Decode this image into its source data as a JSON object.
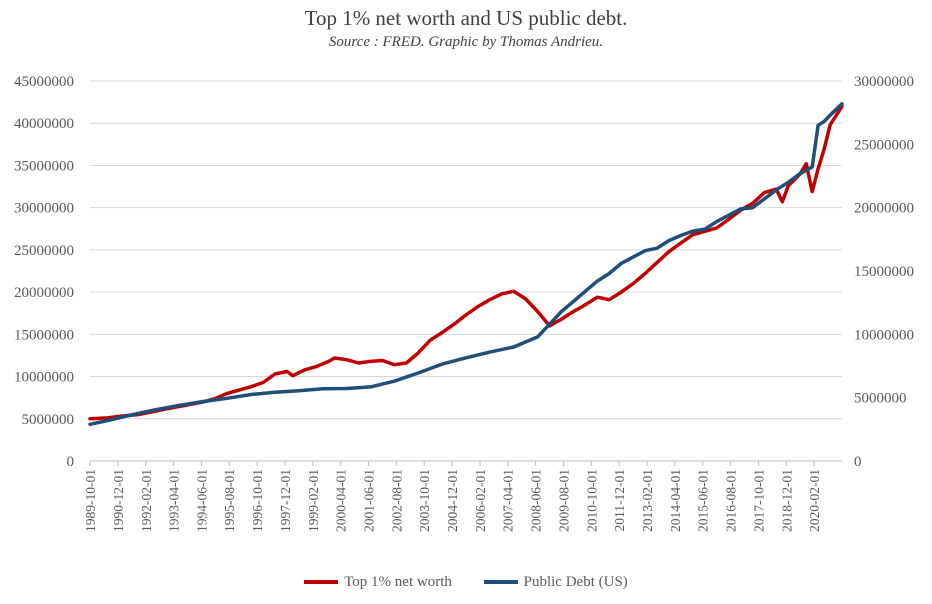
{
  "chart_data": {
    "type": "line",
    "title": "Top 1% net worth and US public debt.",
    "subtitle": "Source : FRED. Graphic by Thomas Andrieu.",
    "legend_position": "bottom",
    "grid": true,
    "y_left": {
      "lim": [
        0,
        45000000
      ],
      "ticks": [
        "0",
        "5000000",
        "10000000",
        "15000000",
        "20000000",
        "25000000",
        "30000000",
        "35000000",
        "40000000",
        "45000000"
      ]
    },
    "y_right": {
      "lim": [
        0,
        30000000
      ],
      "ticks": [
        "0",
        "5000000",
        "10000000",
        "15000000",
        "20000000",
        "25000000",
        "30000000"
      ]
    },
    "x_tick_labels": [
      "1989-10-01",
      "1990-12-01",
      "1992-02-01",
      "1993-04-01",
      "1994-06-01",
      "1995-08-01",
      "1996-10-01",
      "1997-12-01",
      "1999-02-01",
      "2000-04-01",
      "2001-06-01",
      "2002-08-01",
      "2003-10-01",
      "2004-12-01",
      "2006-02-01",
      "2007-04-01",
      "2008-06-01",
      "2009-08-01",
      "2010-10-01",
      "2011-12-01",
      "2013-02-01",
      "2014-04-01",
      "2015-06-01",
      "2016-08-01",
      "2017-10-01",
      "2018-12-01",
      "2020-02-01"
    ],
    "x_range": [
      "1989-10-01",
      "2021-04-01"
    ],
    "series": [
      {
        "name": "Top 1% net worth",
        "axis": "left",
        "color": "#C00000",
        "points": [
          [
            "1989-10-01",
            5000000
          ],
          [
            "1990-07-01",
            5100000
          ],
          [
            "1991-01-01",
            5300000
          ],
          [
            "1991-10-01",
            5500000
          ],
          [
            "1992-07-01",
            5900000
          ],
          [
            "1993-01-01",
            6200000
          ],
          [
            "1993-10-01",
            6600000
          ],
          [
            "1994-07-01",
            7000000
          ],
          [
            "1995-01-01",
            7400000
          ],
          [
            "1995-07-01",
            8000000
          ],
          [
            "1996-01-01",
            8400000
          ],
          [
            "1996-07-01",
            8800000
          ],
          [
            "1997-01-01",
            9300000
          ],
          [
            "1997-07-01",
            10300000
          ],
          [
            "1998-01-01",
            10600000
          ],
          [
            "1998-04-01",
            10100000
          ],
          [
            "1998-10-01",
            10800000
          ],
          [
            "1999-04-01",
            11200000
          ],
          [
            "1999-10-01",
            11800000
          ],
          [
            "2000-01-01",
            12200000
          ],
          [
            "2000-07-01",
            12000000
          ],
          [
            "2001-01-01",
            11600000
          ],
          [
            "2001-07-01",
            11800000
          ],
          [
            "2002-01-01",
            11900000
          ],
          [
            "2002-07-01",
            11400000
          ],
          [
            "2003-01-01",
            11600000
          ],
          [
            "2003-07-01",
            12800000
          ],
          [
            "2004-01-01",
            14300000
          ],
          [
            "2004-07-01",
            15200000
          ],
          [
            "2005-01-01",
            16200000
          ],
          [
            "2005-07-01",
            17300000
          ],
          [
            "2006-01-01",
            18300000
          ],
          [
            "2006-07-01",
            19100000
          ],
          [
            "2007-01-01",
            19800000
          ],
          [
            "2007-07-01",
            20100000
          ],
          [
            "2008-01-01",
            19200000
          ],
          [
            "2008-07-01",
            17700000
          ],
          [
            "2009-01-01",
            16000000
          ],
          [
            "2009-07-01",
            16800000
          ],
          [
            "2010-01-01",
            17700000
          ],
          [
            "2010-07-01",
            18500000
          ],
          [
            "2011-01-01",
            19400000
          ],
          [
            "2011-07-01",
            19100000
          ],
          [
            "2012-01-01",
            20000000
          ],
          [
            "2012-07-01",
            21000000
          ],
          [
            "2013-01-01",
            22200000
          ],
          [
            "2013-07-01",
            23500000
          ],
          [
            "2014-01-01",
            24800000
          ],
          [
            "2014-07-01",
            25800000
          ],
          [
            "2015-01-01",
            26800000
          ],
          [
            "2015-07-01",
            27200000
          ],
          [
            "2016-01-01",
            27600000
          ],
          [
            "2016-07-01",
            28600000
          ],
          [
            "2017-01-01",
            29700000
          ],
          [
            "2017-07-01",
            30500000
          ],
          [
            "2018-01-01",
            31800000
          ],
          [
            "2018-07-01",
            32200000
          ],
          [
            "2018-10-01",
            30700000
          ],
          [
            "2019-01-01",
            32600000
          ],
          [
            "2019-07-01",
            34000000
          ],
          [
            "2019-10-01",
            35200000
          ],
          [
            "2020-01-01",
            31900000
          ],
          [
            "2020-04-01",
            34600000
          ],
          [
            "2020-07-01",
            36900000
          ],
          [
            "2020-10-01",
            39800000
          ],
          [
            "2021-04-01",
            42000000
          ]
        ]
      },
      {
        "name": "Public Debt (US)",
        "axis": "right",
        "color": "#1F4E79",
        "points": [
          [
            "1989-10-01",
            2900000
          ],
          [
            "1990-07-01",
            3200000
          ],
          [
            "1991-07-01",
            3650000
          ],
          [
            "1992-07-01",
            4050000
          ],
          [
            "1993-07-01",
            4400000
          ],
          [
            "1994-07-01",
            4700000
          ],
          [
            "1995-07-01",
            4950000
          ],
          [
            "1996-07-01",
            5250000
          ],
          [
            "1997-07-01",
            5420000
          ],
          [
            "1998-07-01",
            5550000
          ],
          [
            "1999-07-01",
            5700000
          ],
          [
            "2000-07-01",
            5720000
          ],
          [
            "2001-07-01",
            5850000
          ],
          [
            "2002-07-01",
            6300000
          ],
          [
            "2003-07-01",
            6950000
          ],
          [
            "2004-07-01",
            7650000
          ],
          [
            "2005-07-01",
            8150000
          ],
          [
            "2006-07-01",
            8600000
          ],
          [
            "2007-07-01",
            9000000
          ],
          [
            "2008-07-01",
            9800000
          ],
          [
            "2009-01-01",
            10800000
          ],
          [
            "2009-07-01",
            11800000
          ],
          [
            "2010-01-01",
            12600000
          ],
          [
            "2010-07-01",
            13400000
          ],
          [
            "2011-01-01",
            14200000
          ],
          [
            "2011-07-01",
            14800000
          ],
          [
            "2012-01-01",
            15600000
          ],
          [
            "2012-07-01",
            16100000
          ],
          [
            "2013-01-01",
            16600000
          ],
          [
            "2013-07-01",
            16800000
          ],
          [
            "2014-01-01",
            17400000
          ],
          [
            "2014-07-01",
            17800000
          ],
          [
            "2015-01-01",
            18150000
          ],
          [
            "2015-07-01",
            18300000
          ],
          [
            "2016-01-01",
            18900000
          ],
          [
            "2016-07-01",
            19400000
          ],
          [
            "2017-01-01",
            19900000
          ],
          [
            "2017-07-01",
            20000000
          ],
          [
            "2018-01-01",
            20700000
          ],
          [
            "2018-07-01",
            21400000
          ],
          [
            "2019-01-01",
            22000000
          ],
          [
            "2019-07-01",
            22700000
          ],
          [
            "2020-01-01",
            23200000
          ],
          [
            "2020-04-01",
            26500000
          ],
          [
            "2020-07-01",
            26800000
          ],
          [
            "2020-10-01",
            27300000
          ],
          [
            "2021-04-01",
            28200000
          ]
        ]
      }
    ]
  }
}
